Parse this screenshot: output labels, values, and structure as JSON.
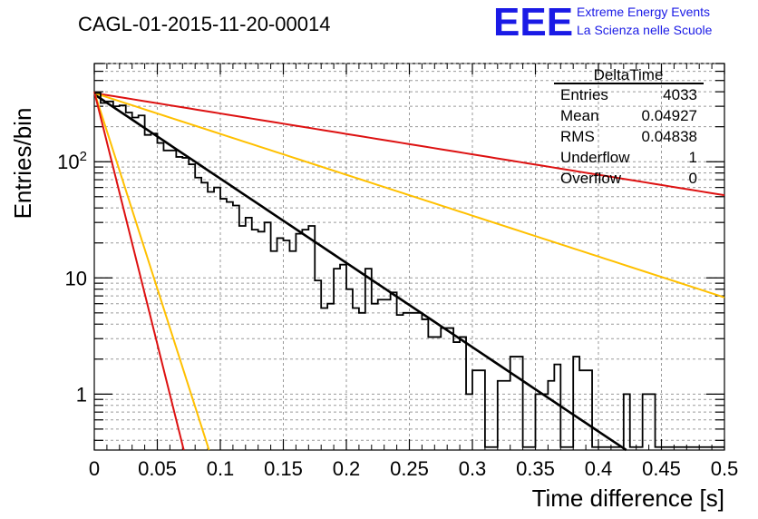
{
  "page": {
    "run_title": "CAGL-01-2015-11-20-00014"
  },
  "logo": {
    "mark": "EEE",
    "line1": "Extreme Energy Events",
    "line2": "La Scienza nelle Scuole",
    "color": "#1a1ae6"
  },
  "stats_box": {
    "title": "DeltaTime",
    "rows": [
      {
        "label": "Entries",
        "value": "4033"
      },
      {
        "label": "Mean",
        "value": "0.04927"
      },
      {
        "label": "RMS",
        "value": "0.04838"
      },
      {
        "label": "Underflow",
        "value": "1"
      },
      {
        "label": "Overflow",
        "value": "0"
      }
    ]
  },
  "chart_data": {
    "type": "histogram",
    "title": "CAGL-01-2015-11-20-00014",
    "xlabel": "Time difference [s]",
    "ylabel": "Entries/bin",
    "xlim": [
      0,
      0.5
    ],
    "ylim": [
      0.33,
      700
    ],
    "yscale": "log",
    "grid": true,
    "x_ticks": [
      "0",
      "0.05",
      "0.1",
      "0.15",
      "0.2",
      "0.25",
      "0.3",
      "0.35",
      "0.4",
      "0.45",
      "0.5"
    ],
    "y_ticks": [
      "1",
      "10",
      "10^2"
    ],
    "histogram": {
      "bin_width": 0.005,
      "values": [
        390,
        320,
        330,
        300,
        305,
        265,
        240,
        250,
        170,
        175,
        145,
        125,
        125,
        110,
        108,
        95,
        73,
        66,
        55,
        60,
        48,
        45,
        42,
        28,
        33,
        26,
        25,
        30,
        17,
        22,
        21,
        17,
        24,
        26,
        28,
        9.5,
        5.5,
        6,
        12,
        13,
        8,
        5.5,
        5,
        12,
        6,
        6.5,
        6.5,
        7.5,
        4.8,
        5,
        5,
        5,
        4.4,
        3.1,
        3.1,
        3.7,
        3.7,
        2.8,
        3.1,
        1,
        1.6,
        1.6,
        0.35,
        0.35,
        1.3,
        1.3,
        2.1,
        2.1,
        0.35,
        0.35,
        1,
        1,
        1.3,
        1.8,
        0.35,
        0.35,
        2.1,
        1.6,
        1.6,
        0.35,
        0.35,
        0.35,
        0.35,
        0.35,
        1,
        0.35,
        0.35,
        1,
        1,
        0.35,
        0.35,
        0.35,
        0.35,
        0.35,
        0.35,
        0.35,
        0.35,
        0.35,
        0.35,
        0.35
      ]
    },
    "series": [
      {
        "color": "#000000",
        "a": 380,
        "b": 16.7
      },
      {
        "color": "#dd1111",
        "a": 390,
        "b": 4.05
      },
      {
        "color": "#ffc000",
        "a": 390,
        "b": 8.1
      },
      {
        "color": "#ffc000",
        "a": 400,
        "b": 78
      },
      {
        "color": "#dd1111",
        "a": 400,
        "b": 100
      }
    ]
  }
}
